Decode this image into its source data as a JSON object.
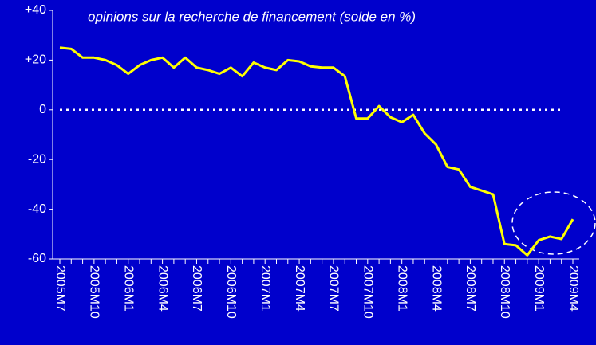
{
  "chart_data": {
    "type": "line",
    "title": "opinions sur la recherche de financement (solde en %)",
    "categories": [
      "2005M7",
      null,
      null,
      "2005M10",
      null,
      null,
      "2006M1",
      null,
      null,
      "2006M4",
      null,
      null,
      "2006M7",
      null,
      null,
      "2006M10",
      null,
      null,
      "2007M1",
      null,
      null,
      "2007M4",
      null,
      null,
      "2007M7",
      null,
      null,
      "2007M10",
      null,
      null,
      "2008M1",
      null,
      null,
      "2008M4",
      null,
      null,
      "2008M7",
      null,
      null,
      "2008M10",
      null,
      null,
      "2009M1",
      null,
      null,
      "2009M4"
    ],
    "series": [
      {
        "name": "solde",
        "color": "#ffff00",
        "values": [
          25,
          24.5,
          21,
          21,
          20,
          18,
          14.5,
          18,
          20,
          21,
          17,
          21,
          17,
          16,
          14.5,
          17,
          13.5,
          19,
          17,
          16,
          20,
          19.5,
          17.5,
          17,
          17,
          13.5,
          -3.5,
          -3.5,
          1.5,
          -3,
          -5,
          -2,
          -9.5,
          -14,
          -23,
          -24,
          -31,
          -32.5,
          -34,
          -54,
          -54.5,
          -58.5,
          -52.5,
          -51,
          -52,
          -44
        ]
      }
    ],
    "ylim": [
      -60,
      40
    ],
    "yticks": [
      {
        "value": 40,
        "label": "+40"
      },
      {
        "value": 20,
        "label": "+20"
      },
      0,
      -20,
      -40,
      -60
    ],
    "zero_line": true
  }
}
